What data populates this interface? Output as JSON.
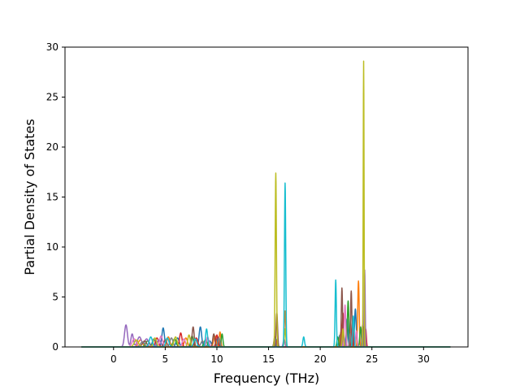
{
  "chart_data": {
    "type": "line",
    "title": "",
    "xlabel": "Frequency (THz)",
    "ylabel": "Partial Density of States",
    "xlim": [
      -4.7,
      34.3
    ],
    "ylim": [
      0,
      30
    ],
    "x_ticks": [
      0,
      5,
      10,
      15,
      20,
      25,
      30
    ],
    "y_ticks": [
      0,
      5,
      10,
      15,
      20,
      25,
      30
    ],
    "grid": false,
    "legend": "none",
    "x_range_plotted": [
      -3.1,
      32.6
    ],
    "series": [
      {
        "color": "#1f77b4",
        "peaks": [
          [
            3.9,
            0.8,
            0.15
          ],
          [
            4.8,
            1.9,
            0.12
          ],
          [
            6.2,
            0.9,
            0.15
          ],
          [
            8.4,
            2.0,
            0.12
          ],
          [
            9.3,
            0.6,
            0.15
          ],
          [
            10.1,
            1.0,
            0.1
          ],
          [
            15.7,
            0.8,
            0.08
          ],
          [
            21.9,
            1.2,
            0.08
          ],
          [
            22.6,
            2.8,
            0.08
          ],
          [
            23.4,
            3.8,
            0.08
          ],
          [
            24.2,
            1.0,
            0.06
          ]
        ]
      },
      {
        "color": "#ff7f0e",
        "peaks": [
          [
            2.6,
            0.7,
            0.2
          ],
          [
            5.3,
            1.0,
            0.15
          ],
          [
            7.0,
            0.9,
            0.15
          ],
          [
            9.8,
            1.1,
            0.12
          ],
          [
            10.3,
            1.5,
            0.08
          ],
          [
            15.6,
            1.0,
            0.08
          ],
          [
            16.6,
            3.6,
            0.07
          ],
          [
            22.0,
            1.5,
            0.08
          ],
          [
            23.7,
            6.6,
            0.07
          ],
          [
            24.3,
            1.2,
            0.06
          ]
        ]
      },
      {
        "color": "#2ca02c",
        "peaks": [
          [
            3.3,
            0.6,
            0.2
          ],
          [
            5.9,
            0.8,
            0.15
          ],
          [
            7.6,
            1.1,
            0.12
          ],
          [
            8.9,
            0.7,
            0.15
          ],
          [
            10.5,
            1.3,
            0.08
          ],
          [
            15.8,
            0.6,
            0.08
          ],
          [
            21.7,
            1.0,
            0.08
          ],
          [
            22.7,
            4.6,
            0.07
          ],
          [
            23.9,
            2.0,
            0.07
          ]
        ]
      },
      {
        "color": "#d62728",
        "peaks": [
          [
            4.2,
            0.9,
            0.15
          ],
          [
            6.5,
            1.4,
            0.12
          ],
          [
            8.0,
            0.9,
            0.15
          ],
          [
            10.0,
            1.2,
            0.1
          ],
          [
            15.7,
            0.7,
            0.08
          ],
          [
            22.2,
            3.4,
            0.07
          ],
          [
            23.1,
            2.6,
            0.07
          ],
          [
            24.4,
            1.8,
            0.06
          ]
        ]
      },
      {
        "color": "#9467bd",
        "peaks": [
          [
            1.2,
            2.2,
            0.14
          ],
          [
            1.8,
            1.3,
            0.12
          ],
          [
            2.5,
            1.0,
            0.2
          ],
          [
            3.2,
            0.8,
            0.2
          ],
          [
            4.4,
            0.7,
            0.2
          ],
          [
            16.5,
            0.8,
            0.08
          ],
          [
            22.3,
            1.0,
            0.08
          ],
          [
            24.3,
            7.7,
            0.05
          ]
        ]
      },
      {
        "color": "#8c564b",
        "peaks": [
          [
            3.0,
            0.6,
            0.2
          ],
          [
            5.0,
            0.7,
            0.15
          ],
          [
            7.7,
            2.0,
            0.1
          ],
          [
            9.7,
            1.3,
            0.1
          ],
          [
            15.8,
            3.4,
            0.07
          ],
          [
            22.1,
            5.9,
            0.06
          ],
          [
            23.0,
            5.6,
            0.06
          ],
          [
            24.2,
            2.0,
            0.06
          ]
        ]
      },
      {
        "color": "#e377c2",
        "peaks": [
          [
            2.0,
            0.8,
            0.2
          ],
          [
            4.6,
            1.1,
            0.15
          ],
          [
            6.8,
            0.8,
            0.15
          ],
          [
            9.1,
            1.0,
            0.12
          ],
          [
            22.4,
            4.2,
            0.07
          ],
          [
            23.5,
            1.6,
            0.07
          ]
        ]
      },
      {
        "color": "#7f7f7f",
        "peaks": [
          [
            2.8,
            0.5,
            0.2
          ],
          [
            5.6,
            0.9,
            0.15
          ],
          [
            8.6,
            0.6,
            0.15
          ],
          [
            10.2,
            0.9,
            0.1
          ],
          [
            15.6,
            0.9,
            0.08
          ],
          [
            22.9,
            1.3,
            0.07
          ],
          [
            24.1,
            2.2,
            0.06
          ]
        ]
      },
      {
        "color": "#bcbd22",
        "peaks": [
          [
            2.2,
            0.7,
            0.2
          ],
          [
            4.0,
            0.9,
            0.15
          ],
          [
            6.0,
            1.0,
            0.15
          ],
          [
            7.3,
            1.2,
            0.12
          ],
          [
            15.7,
            17.4,
            0.06
          ],
          [
            16.6,
            1.8,
            0.07
          ],
          [
            22.2,
            1.8,
            0.07
          ],
          [
            24.2,
            28.6,
            0.04
          ]
        ]
      },
      {
        "color": "#17becf",
        "peaks": [
          [
            3.6,
            1.0,
            0.15
          ],
          [
            5.2,
            0.9,
            0.15
          ],
          [
            7.9,
            0.8,
            0.15
          ],
          [
            9.0,
            1.8,
            0.1
          ],
          [
            16.6,
            16.4,
            0.06
          ],
          [
            18.4,
            1.0,
            0.08
          ],
          [
            21.5,
            6.7,
            0.06
          ],
          [
            23.2,
            3.1,
            0.07
          ]
        ]
      }
    ]
  }
}
